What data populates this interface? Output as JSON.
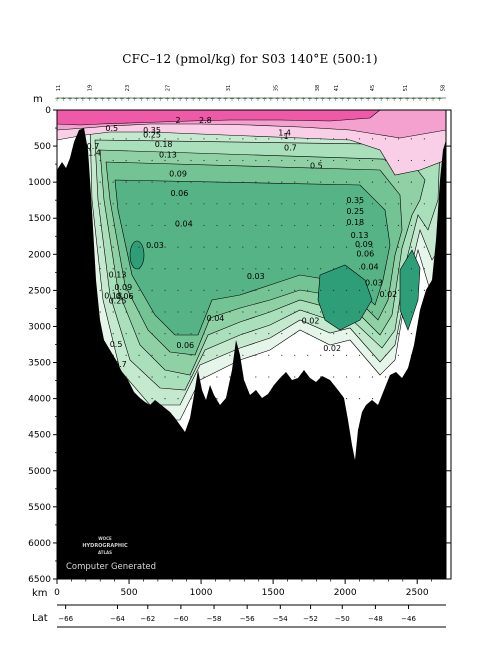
{
  "title": "CFC–12 (pmol/kg) for S03 140°E (500:1)",
  "watermark": {
    "logo_lines": [
      "WOCE",
      "HYDROGRAPHIC",
      "ATLAS"
    ],
    "footer": "Computer Generated"
  },
  "colors": {
    "background": "#ffffff",
    "bathymetry": "#000000",
    "pink_high": "#ef5aa8",
    "pink_mid": "#f4a1cf",
    "pink_low": "#f8cfe6",
    "green_very_light": "#e6f5ea",
    "green_light": "#c4e9cf",
    "green_pale": "#a9dfba",
    "green_mid_light": "#8fd0a5",
    "green_mid": "#74c394",
    "green_deep": "#56b385",
    "green_darkest": "#2e9e78"
  },
  "chart_data": {
    "type": "heatmap",
    "title": "CFC–12 (pmol/kg) for S03 140°E (500:1)",
    "xlabel": "km",
    "ylabel": "m",
    "secondary_xlabel": "Lat",
    "xlim": [
      0,
      2700
    ],
    "ylim": [
      0,
      6500
    ],
    "y_inverted": true,
    "x_ticks": [
      0,
      500,
      1000,
      1500,
      2000,
      2500
    ],
    "x_ticklabels": [
      "0",
      "500",
      "1000",
      "1500",
      "2000",
      "2500"
    ],
    "y_ticks": [
      0,
      500,
      1000,
      1500,
      2000,
      2500,
      3000,
      3500,
      4000,
      4500,
      5000,
      5500,
      6000,
      6500
    ],
    "y_ticklabels": [
      "0",
      "500",
      "1000",
      "1500",
      "2000",
      "2500",
      "3000",
      "3500",
      "4000",
      "4500",
      "5000",
      "5500",
      "6000",
      "6500"
    ],
    "lat_ticks": [
      {
        "km": 60,
        "label": "−66"
      },
      {
        "km": 420,
        "label": "−64"
      },
      {
        "km": 630,
        "label": "−62"
      },
      {
        "km": 860,
        "label": "−60"
      },
      {
        "km": 1090,
        "label": "−58"
      },
      {
        "km": 1320,
        "label": "−56"
      },
      {
        "km": 1550,
        "label": "−54"
      },
      {
        "km": 1760,
        "label": "−52"
      },
      {
        "km": 1980,
        "label": "−50"
      },
      {
        "km": 2210,
        "label": "−48"
      },
      {
        "km": 2440,
        "label": "−46"
      }
    ],
    "station_labels": [
      {
        "km": 20,
        "label": "11"
      },
      {
        "km": 240,
        "label": "19"
      },
      {
        "km": 500,
        "label": "23"
      },
      {
        "km": 780,
        "label": "27"
      },
      {
        "km": 1200,
        "label": "31"
      },
      {
        "km": 1530,
        "label": "35"
      },
      {
        "km": 1820,
        "label": "38"
      },
      {
        "km": 1950,
        "label": "41"
      },
      {
        "km": 2200,
        "label": "45"
      },
      {
        "km": 2430,
        "label": "51"
      },
      {
        "km": 2690,
        "label": "58"
      }
    ],
    "contour_levels": [
      0.02,
      0.03,
      0.04,
      0.06,
      0.09,
      0.13,
      0.18,
      0.25,
      0.35,
      0.5,
      0.7,
      1,
      1.4,
      2,
      2.8
    ],
    "contour_labels": [
      {
        "km": 380,
        "depth": 250,
        "label": "0.5"
      },
      {
        "km": 660,
        "depth": 280,
        "label": "0.35"
      },
      {
        "km": 660,
        "depth": 340,
        "label": "0.25"
      },
      {
        "km": 740,
        "depth": 470,
        "label": "0.18"
      },
      {
        "km": 770,
        "depth": 620,
        "label": "0.13"
      },
      {
        "km": 840,
        "depth": 880,
        "label": "0.09"
      },
      {
        "km": 850,
        "depth": 1150,
        "label": "0.06"
      },
      {
        "km": 880,
        "depth": 1570,
        "label": "0.04"
      },
      {
        "km": 680,
        "depth": 1870,
        "label": "0.03"
      },
      {
        "km": 420,
        "depth": 2280,
        "label": "0.13"
      },
      {
        "km": 460,
        "depth": 2450,
        "label": "0.09"
      },
      {
        "km": 390,
        "depth": 2570,
        "label": "0.18"
      },
      {
        "km": 420,
        "depth": 2640,
        "label": "0.25"
      },
      {
        "km": 470,
        "depth": 2580,
        "label": "0.06"
      },
      {
        "km": 410,
        "depth": 3240,
        "label": "0.5"
      },
      {
        "km": 440,
        "depth": 3520,
        "label": "0.7"
      },
      {
        "km": 890,
        "depth": 3260,
        "label": "0.06"
      },
      {
        "km": 1100,
        "depth": 2880,
        "label": "0.04"
      },
      {
        "km": 1380,
        "depth": 2300,
        "label": "0.03"
      },
      {
        "km": 1760,
        "depth": 2920,
        "label": "0.02"
      },
      {
        "km": 1910,
        "depth": 3300,
        "label": "0.02"
      },
      {
        "km": 1030,
        "depth": 140,
        "label": "2.8"
      },
      {
        "km": 840,
        "depth": 140,
        "label": "2"
      },
      {
        "km": 1580,
        "depth": 310,
        "label": "1.4"
      },
      {
        "km": 1590,
        "depth": 360,
        "label": "1"
      },
      {
        "km": 1620,
        "depth": 520,
        "label": "0.7"
      },
      {
        "km": 1800,
        "depth": 770,
        "label": "0.5"
      },
      {
        "km": 2070,
        "depth": 1250,
        "label": "0.35"
      },
      {
        "km": 2070,
        "depth": 1400,
        "label": "0.25"
      },
      {
        "km": 2070,
        "depth": 1550,
        "label": "0.18"
      },
      {
        "km": 2100,
        "depth": 1730,
        "label": "0.13"
      },
      {
        "km": 2130,
        "depth": 1860,
        "label": "0.09"
      },
      {
        "km": 2140,
        "depth": 1990,
        "label": "0.06"
      },
      {
        "km": 2170,
        "depth": 2170,
        "label": "0.04"
      },
      {
        "km": 2200,
        "depth": 2390,
        "label": "0.03"
      },
      {
        "km": 2300,
        "depth": 2550,
        "label": "0.02"
      },
      {
        "km": 250,
        "depth": 500,
        "label": "0.7"
      },
      {
        "km": 260,
        "depth": 590,
        "label": "1.4"
      }
    ]
  }
}
